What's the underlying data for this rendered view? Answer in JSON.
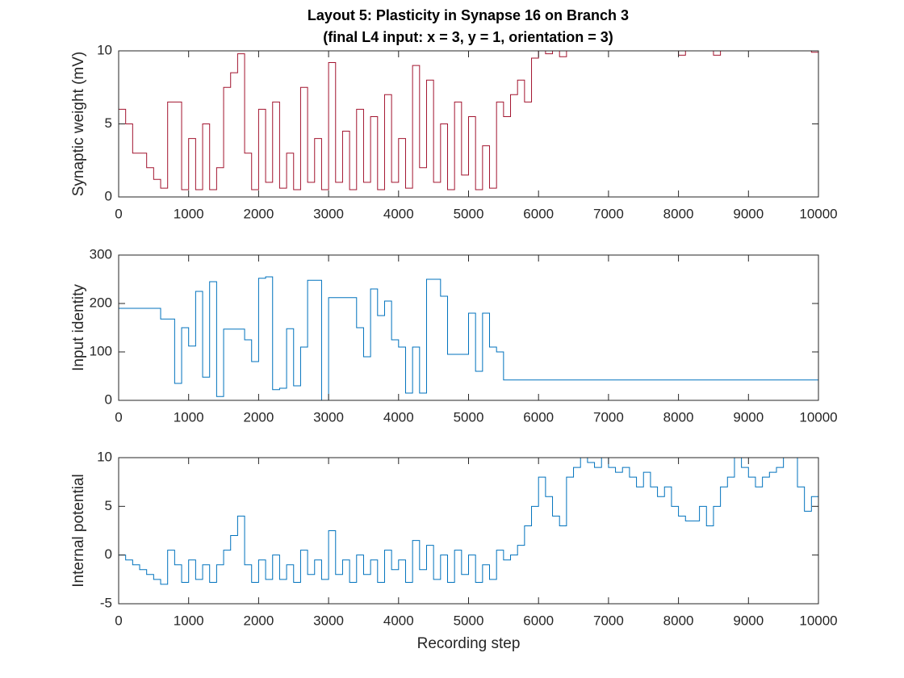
{
  "chart_data": [
    {
      "type": "line",
      "title": "Layout 5: Plasticity in Synapse 16 on Branch 3",
      "subtitle": "(final L4 input: x = 3, y = 1, orientation = 3)",
      "ylabel": "Synaptic weight (mV)",
      "xlim": [
        0,
        10000
      ],
      "xticks": [
        0,
        1000,
        2000,
        3000,
        4000,
        5000,
        6000,
        7000,
        8000,
        9000,
        10000
      ],
      "ylim": [
        0,
        10
      ],
      "yticks": [
        0,
        5,
        10
      ],
      "series": [
        {
          "color": "#a2142f",
          "x": [
            0,
            100,
            200,
            300,
            400,
            500,
            600,
            700,
            800,
            900,
            1000,
            1100,
            1200,
            1300,
            1400,
            1500,
            1600,
            1700,
            1800,
            1900,
            2000,
            2100,
            2200,
            2300,
            2400,
            2500,
            2600,
            2700,
            2800,
            2900,
            3000,
            3100,
            3200,
            3300,
            3400,
            3500,
            3600,
            3700,
            3800,
            3900,
            4000,
            4100,
            4200,
            4300,
            4400,
            4500,
            4600,
            4700,
            4800,
            4900,
            5000,
            5100,
            5200,
            5300,
            5400,
            5500,
            5600,
            5700,
            5800,
            5900,
            6000,
            6100,
            6200,
            6300,
            6400,
            6500,
            7000,
            7500,
            8000,
            8100,
            8500,
            8600,
            9000,
            9500,
            9900,
            10000
          ],
          "values": [
            6,
            5,
            3,
            3,
            2,
            1.2,
            0.6,
            6.5,
            6.5,
            0.5,
            4,
            0.5,
            5,
            0.5,
            2,
            7.5,
            8.5,
            9.8,
            3,
            0.5,
            6,
            1,
            6.5,
            0.6,
            3,
            0.5,
            7.5,
            1,
            4,
            0.5,
            9.2,
            1,
            4.5,
            0.5,
            6,
            1,
            5.5,
            0.5,
            7,
            1,
            4,
            0.6,
            9,
            2,
            8,
            1,
            5,
            0.5,
            6.5,
            1.5,
            5.5,
            0.5,
            3.5,
            0.6,
            6.5,
            5.5,
            7,
            8,
            6.5,
            9.5,
            10,
            9.8,
            10,
            9.6,
            10,
            10,
            10,
            10,
            9.7,
            10,
            9.7,
            10,
            10,
            10,
            9.9,
            10
          ]
        },
        {
          "color": "#7e2f8e",
          "x": [
            0,
            10000
          ],
          "values": [
            0,
            0
          ]
        }
      ]
    },
    {
      "type": "line",
      "ylabel": "Input identity",
      "xlim": [
        0,
        10000
      ],
      "xticks": [
        0,
        1000,
        2000,
        3000,
        4000,
        5000,
        6000,
        7000,
        8000,
        9000,
        10000
      ],
      "ylim": [
        0,
        300
      ],
      "yticks": [
        0,
        100,
        200,
        300
      ],
      "series": [
        {
          "color": "#0072bd",
          "x": [
            0,
            600,
            800,
            900,
            1000,
            1100,
            1200,
            1300,
            1400,
            1500,
            1800,
            1900,
            2000,
            2100,
            2200,
            2300,
            2400,
            2500,
            2600,
            2700,
            2900,
            3000,
            3400,
            3500,
            3600,
            3700,
            3800,
            3900,
            4000,
            4100,
            4200,
            4300,
            4400,
            4600,
            4700,
            5000,
            5100,
            5200,
            5300,
            5400,
            5500,
            10000
          ],
          "values": [
            190,
            168,
            35,
            150,
            112,
            225,
            48,
            245,
            8,
            147,
            125,
            80,
            252,
            255,
            22,
            25,
            148,
            30,
            110,
            248,
            0,
            212,
            150,
            90,
            230,
            175,
            205,
            125,
            110,
            15,
            110,
            15,
            250,
            215,
            95,
            180,
            60,
            180,
            110,
            100,
            42,
            42
          ]
        }
      ]
    },
    {
      "type": "line",
      "ylabel": "Internal potential",
      "xlabel": "Recording step",
      "xlim": [
        0,
        10000
      ],
      "xticks": [
        0,
        1000,
        2000,
        3000,
        4000,
        5000,
        6000,
        7000,
        8000,
        9000,
        10000
      ],
      "ylim": [
        -5,
        10
      ],
      "yticks": [
        -5,
        0,
        5,
        10
      ],
      "series": [
        {
          "color": "#0072bd",
          "x": [
            0,
            100,
            200,
            300,
            400,
            500,
            600,
            700,
            800,
            900,
            1000,
            1100,
            1200,
            1300,
            1400,
            1500,
            1600,
            1700,
            1800,
            1900,
            2000,
            2100,
            2200,
            2300,
            2400,
            2500,
            2600,
            2700,
            2800,
            2900,
            3000,
            3100,
            3200,
            3300,
            3400,
            3500,
            3600,
            3700,
            3800,
            3900,
            4000,
            4100,
            4200,
            4300,
            4400,
            4500,
            4600,
            4700,
            4800,
            4900,
            5000,
            5100,
            5200,
            5300,
            5400,
            5500,
            5600,
            5700,
            5800,
            5900,
            6000,
            6100,
            6200,
            6300,
            6400,
            6500,
            6600,
            6700,
            6800,
            6900,
            7000,
            7100,
            7200,
            7300,
            7400,
            7500,
            7600,
            7700,
            7800,
            7900,
            8000,
            8100,
            8200,
            8300,
            8400,
            8500,
            8600,
            8700,
            8800,
            8900,
            9000,
            9100,
            9200,
            9300,
            9400,
            9500,
            9600,
            9700,
            9800,
            9900,
            10000
          ],
          "values": [
            0,
            -0.5,
            -1,
            -1.5,
            -2,
            -2.5,
            -3,
            0.5,
            -1,
            -2.8,
            -0.5,
            -2.5,
            -1,
            -2.8,
            -1,
            0.5,
            2,
            4,
            -1,
            -2.8,
            -0.5,
            -2.5,
            0,
            -2.5,
            -1,
            -2.8,
            0.5,
            -2,
            -0.5,
            -2.5,
            2.5,
            -2,
            -0.5,
            -2.8,
            0,
            -2,
            -0.5,
            -2.8,
            0.5,
            -1.5,
            -0.5,
            -2.8,
            1.5,
            -1.5,
            1,
            -2.5,
            0,
            -2.8,
            0.5,
            -2,
            0,
            -2.8,
            -1,
            -2.5,
            0.5,
            -0.5,
            0,
            1,
            3,
            5,
            8,
            6,
            4,
            3,
            8,
            9,
            10,
            9.5,
            9,
            10,
            9,
            8.5,
            9,
            8,
            7,
            8.5,
            7,
            6,
            7,
            5,
            4,
            3.5,
            3.5,
            5,
            3,
            5,
            7,
            8,
            10,
            9,
            8,
            7,
            8,
            8.5,
            9,
            10,
            10,
            7,
            4.5,
            6,
            5
          ]
        }
      ]
    }
  ]
}
